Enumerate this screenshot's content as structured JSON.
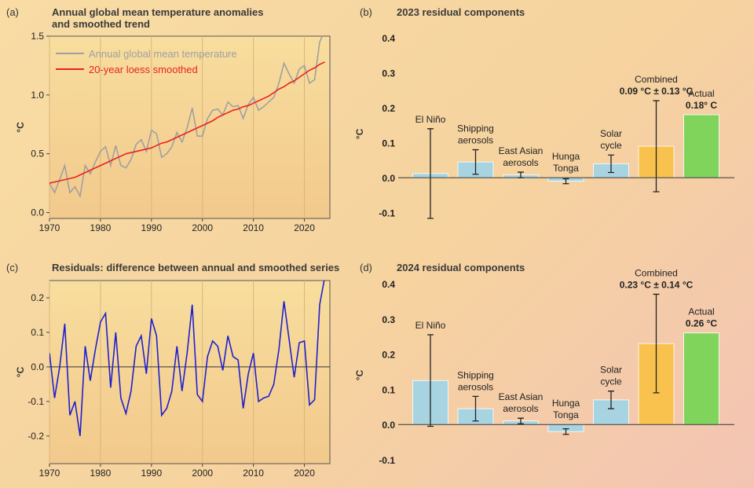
{
  "chart_data": [
    {
      "type": "line",
      "label": "(a)",
      "title": "Annual global mean temperature anomalies\nand smoothed trend",
      "y_label": "°C",
      "x": [
        1970,
        1971,
        1972,
        1973,
        1974,
        1975,
        1976,
        1977,
        1978,
        1979,
        1980,
        1981,
        1982,
        1983,
        1984,
        1985,
        1986,
        1987,
        1988,
        1989,
        1990,
        1991,
        1992,
        1993,
        1994,
        1995,
        1996,
        1997,
        1998,
        1999,
        2000,
        2001,
        2002,
        2003,
        2004,
        2005,
        2006,
        2007,
        2008,
        2009,
        2010,
        2011,
        2012,
        2013,
        2014,
        2015,
        2016,
        2017,
        2018,
        2019,
        2020,
        2021,
        2022,
        2023,
        2024
      ],
      "series": [
        {
          "name": "Annual global mean temperature",
          "color": "#a0a0a0",
          "values": [
            0.25,
            0.17,
            0.28,
            0.4,
            0.17,
            0.22,
            0.14,
            0.4,
            0.33,
            0.43,
            0.52,
            0.56,
            0.4,
            0.57,
            0.4,
            0.38,
            0.45,
            0.58,
            0.62,
            0.52,
            0.7,
            0.67,
            0.47,
            0.5,
            0.56,
            0.68,
            0.6,
            0.72,
            0.89,
            0.65,
            0.65,
            0.8,
            0.87,
            0.88,
            0.83,
            0.94,
            0.9,
            0.91,
            0.8,
            0.92,
            0.98,
            0.87,
            0.9,
            0.94,
            0.98,
            1.1,
            1.27,
            1.18,
            1.1,
            1.22,
            1.25,
            1.1,
            1.13,
            1.45,
            1.55
          ]
        },
        {
          "name": "20-year loess smoothed",
          "color": "#e8231f",
          "values": [
            0.25,
            0.26,
            0.27,
            0.28,
            0.29,
            0.3,
            0.32,
            0.34,
            0.36,
            0.38,
            0.4,
            0.42,
            0.44,
            0.46,
            0.48,
            0.5,
            0.51,
            0.52,
            0.53,
            0.54,
            0.55,
            0.57,
            0.59,
            0.6,
            0.62,
            0.64,
            0.66,
            0.68,
            0.7,
            0.72,
            0.74,
            0.76,
            0.78,
            0.81,
            0.83,
            0.85,
            0.87,
            0.88,
            0.9,
            0.91,
            0.93,
            0.95,
            0.97,
            0.99,
            1.02,
            1.05,
            1.07,
            1.1,
            1.12,
            1.15,
            1.18,
            1.21,
            1.23,
            1.26,
            1.28
          ]
        }
      ],
      "xlim": [
        1970,
        2025
      ],
      "xticks": [
        1970,
        1980,
        1990,
        2000,
        2010,
        2020
      ],
      "ylim": [
        -0.05,
        1.5
      ],
      "yticks": [
        {
          "value": 0,
          "label": "0.0"
        },
        0.5,
        {
          "value": 1,
          "label": "1.0"
        },
        1.5
      ],
      "legend": "upper left",
      "grid": true
    },
    {
      "type": "bar",
      "label": "(b)",
      "title": "2023 residual components",
      "y_label": "°C",
      "categories": [
        "El Niño",
        "Shipping\naerosols",
        "East Asian\naerosols",
        "Hunga\nTonga",
        "Solar\ncycle",
        "Combined",
        "Actual"
      ],
      "values": [
        0.012,
        0.045,
        0.008,
        -0.01,
        0.04,
        0.09,
        0.18
      ],
      "errors": [
        0.128,
        0.035,
        0.008,
        0.007,
        0.025,
        0.13,
        null
      ],
      "value_labels": [
        null,
        null,
        null,
        null,
        null,
        "0.09 °C ± 0.13 °C",
        "0.18° C"
      ],
      "colors": [
        "#a8d4e2",
        "#a8d4e2",
        "#a8d4e2",
        "#a8d4e2",
        "#a8d4e2",
        "#f9c24e",
        "#80d45c"
      ],
      "ylim": [
        -0.15,
        0.4
      ],
      "yticks": [
        -0.1,
        {
          "value": 0,
          "label": "0.0"
        },
        0.1,
        0.2,
        0.3,
        0.4
      ]
    },
    {
      "type": "line",
      "label": "(c)",
      "title": "Residuals: difference between annual and smoothed series",
      "y_label": "°C",
      "x": [
        1970,
        1971,
        1972,
        1973,
        1974,
        1975,
        1976,
        1977,
        1978,
        1979,
        1980,
        1981,
        1982,
        1983,
        1984,
        1985,
        1986,
        1987,
        1988,
        1989,
        1990,
        1991,
        1992,
        1993,
        1994,
        1995,
        1996,
        1997,
        1998,
        1999,
        2000,
        2001,
        2002,
        2003,
        2004,
        2005,
        2006,
        2007,
        2008,
        2009,
        2010,
        2011,
        2012,
        2013,
        2014,
        2015,
        2016,
        2017,
        2018,
        2019,
        2020,
        2021,
        2022,
        2023,
        2024
      ],
      "color": "#2020d0",
      "values": [
        0.04,
        -0.09,
        0.0,
        0.125,
        -0.14,
        -0.1,
        -0.2,
        0.06,
        -0.04,
        0.05,
        0.13,
        0.155,
        -0.06,
        0.1,
        -0.09,
        -0.135,
        -0.07,
        0.06,
        0.09,
        -0.02,
        0.14,
        0.09,
        -0.14,
        -0.12,
        -0.07,
        0.06,
        -0.07,
        0.04,
        0.18,
        -0.08,
        -0.1,
        0.03,
        0.075,
        0.06,
        -0.01,
        0.09,
        0.03,
        0.02,
        -0.12,
        -0.02,
        0.04,
        -0.1,
        -0.09,
        -0.085,
        -0.05,
        0.05,
        0.19,
        0.08,
        -0.03,
        0.07,
        0.075,
        -0.11,
        -0.095,
        0.18,
        0.26
      ],
      "xlim": [
        1970,
        2025
      ],
      "xticks": [
        1970,
        1980,
        1990,
        2000,
        2010,
        2020
      ],
      "ylim": [
        -0.28,
        0.25
      ],
      "yticks": [
        -0.2,
        -0.1,
        {
          "value": 0,
          "label": "0.0"
        },
        0.1,
        0.2
      ],
      "zero_line": true,
      "grid": true
    },
    {
      "type": "bar",
      "label": "(d)",
      "title": "2024 residual components",
      "y_label": "°C",
      "categories": [
        "El Niño",
        "Shipping\naerosols",
        "East Asian\naerosols",
        "Hunga\nTonga",
        "Solar\ncycle",
        "Combined",
        "Actual"
      ],
      "values": [
        0.125,
        0.045,
        0.01,
        -0.02,
        0.07,
        0.23,
        0.26
      ],
      "errors": [
        0.13,
        0.035,
        0.008,
        0.008,
        0.025,
        0.14,
        null
      ],
      "value_labels": [
        null,
        null,
        null,
        null,
        null,
        "0.23 °C ± 0.14 °C",
        "0.26 °C"
      ],
      "colors": [
        "#a8d4e2",
        "#a8d4e2",
        "#a8d4e2",
        "#a8d4e2",
        "#a8d4e2",
        "#f9c24e",
        "#80d45c"
      ],
      "ylim": [
        -0.12,
        0.4
      ],
      "yticks": [
        -0.1,
        {
          "value": 0,
          "label": "0.0"
        },
        0.1,
        0.2,
        0.3,
        0.4
      ]
    }
  ]
}
